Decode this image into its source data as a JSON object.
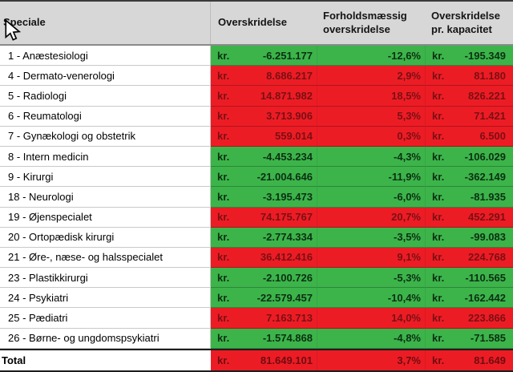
{
  "colors": {
    "green_bg": "#3cb44a",
    "red_bg": "#ec1c25",
    "green_text": "#0c2f13",
    "red_text": "#7a1013",
    "header_bg": "#d7d7d7"
  },
  "header": {
    "col1": "Speciale",
    "col2": "Overskridelse",
    "col3_line1": "Forholdsmæssig",
    "col3_line2": "overskridelse",
    "col4_line1": "Overskridelse",
    "col4_line2": "pr. kapacitet"
  },
  "table": {
    "currency_label": "kr.",
    "rows": [
      {
        "label": "1 - Anæstesiologi",
        "over": "-6.251.177",
        "pct": "-12,6%",
        "cap": "-195.349",
        "status": "good",
        "is_total": false
      },
      {
        "label": "4 - Dermato-venerologi",
        "over": "8.686.217",
        "pct": "2,9%",
        "cap": "81.180",
        "status": "bad",
        "is_total": false
      },
      {
        "label": "5 - Radiologi",
        "over": "14.871.982",
        "pct": "18,5%",
        "cap": "826.221",
        "status": "bad",
        "is_total": false
      },
      {
        "label": "6 - Reumatologi",
        "over": "3.713.906",
        "pct": "5,3%",
        "cap": "71.421",
        "status": "bad",
        "is_total": false
      },
      {
        "label": "7 - Gynækologi og obstetrik",
        "over": "559.014",
        "pct": "0,3%",
        "cap": "6.500",
        "status": "bad",
        "is_total": false
      },
      {
        "label": "8 - Intern medicin",
        "over": "-4.453.234",
        "pct": "-4,3%",
        "cap": "-106.029",
        "status": "good",
        "is_total": false
      },
      {
        "label": "9 - Kirurgi",
        "over": "-21.004.646",
        "pct": "-11,9%",
        "cap": "-362.149",
        "status": "good",
        "is_total": false
      },
      {
        "label": "18 - Neurologi",
        "over": "-3.195.473",
        "pct": "-6,0%",
        "cap": "-81.935",
        "status": "good",
        "is_total": false
      },
      {
        "label": "19 - Øjenspecialet",
        "over": "74.175.767",
        "pct": "20,7%",
        "cap": "452.291",
        "status": "bad",
        "is_total": false
      },
      {
        "label": "20 - Ortopædisk kirurgi",
        "over": "-2.774.334",
        "pct": "-3,5%",
        "cap": "-99.083",
        "status": "good",
        "is_total": false
      },
      {
        "label": "21 - Øre-, næse- og halsspecialet",
        "over": "36.412.416",
        "pct": "9,1%",
        "cap": "224.768",
        "status": "bad",
        "is_total": false
      },
      {
        "label": "23 - Plastikkirurgi",
        "over": "-2.100.726",
        "pct": "-5,3%",
        "cap": "-110.565",
        "status": "good",
        "is_total": false
      },
      {
        "label": "24 - Psykiatri",
        "over": "-22.579.457",
        "pct": "-10,4%",
        "cap": "-162.442",
        "status": "good",
        "is_total": false
      },
      {
        "label": "25 - Pædiatri",
        "over": "7.163.713",
        "pct": "14,0%",
        "cap": "223.866",
        "status": "bad",
        "is_total": false
      },
      {
        "label": "26 - Børne- og ungdomspsykiatri",
        "over": "-1.574.868",
        "pct": "-4,8%",
        "cap": "-71.585",
        "status": "good",
        "is_total": false
      },
      {
        "label": "Total",
        "over": "81.649.101",
        "pct": "3,7%",
        "cap": "81.649",
        "status": "bad",
        "is_total": true
      }
    ]
  }
}
